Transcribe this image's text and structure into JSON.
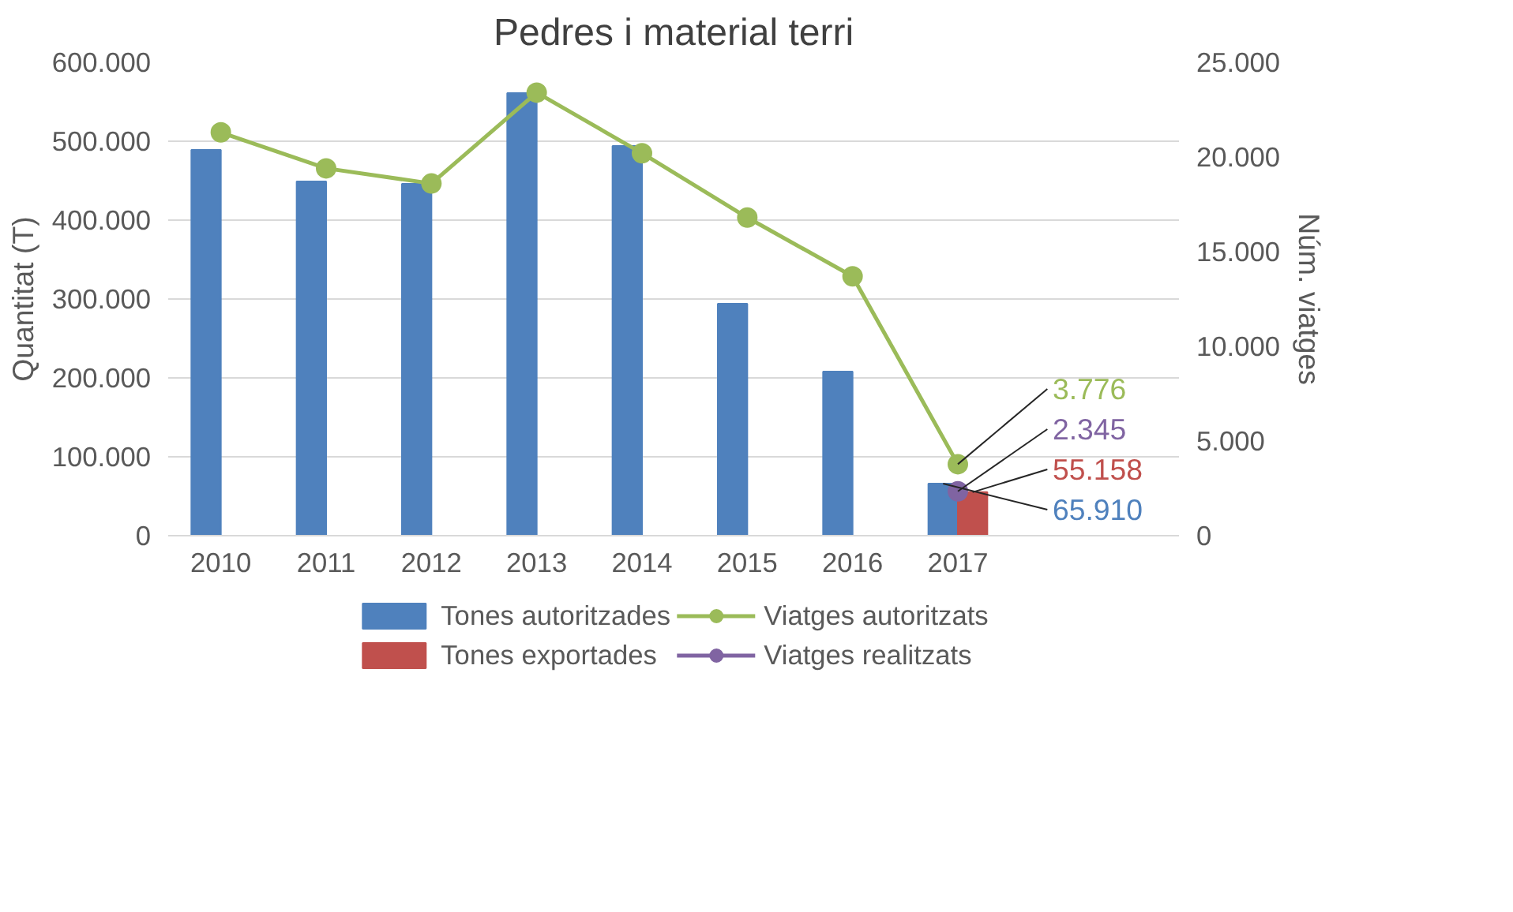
{
  "chart_data": {
    "type": "bar",
    "title": "Pedres i material terri",
    "ylabel": "Quantitat (T)",
    "y2label": "Núm. viatges",
    "categories": [
      "2010",
      "2011",
      "2012",
      "2013",
      "2014",
      "2015",
      "2016",
      "2017"
    ],
    "series": [
      {
        "name": "Tones autoritzades",
        "color": "#4f81bd",
        "values": [
          489000,
          449000,
          446000,
          561000,
          494000,
          294000,
          208000,
          65910
        ],
        "value_labels": [
          null,
          null,
          null,
          null,
          null,
          null,
          null,
          "65.910"
        ]
      },
      {
        "name": "Tones exportades",
        "color": "#c0504d",
        "values": [
          null,
          null,
          null,
          null,
          null,
          null,
          null,
          55158
        ],
        "value_labels": [
          null,
          null,
          null,
          null,
          null,
          null,
          null,
          "55.158"
        ]
      },
      {
        "name": "Viatges autoritzats",
        "type": "line",
        "axis": "y2",
        "color": "#9bbb59",
        "values": [
          21300,
          19400,
          18600,
          23400,
          20200,
          16800,
          13700,
          3776
        ],
        "value_labels": [
          null,
          null,
          null,
          null,
          null,
          null,
          null,
          "3.776"
        ]
      },
      {
        "name": "Viatges realitzats",
        "type": "line",
        "axis": "y2",
        "color": "#8064a2",
        "values": [
          null,
          null,
          null,
          null,
          null,
          null,
          null,
          2345
        ],
        "value_labels": [
          null,
          null,
          null,
          null,
          null,
          null,
          null,
          "2.345"
        ]
      }
    ],
    "ylim": [
      0,
      600000
    ],
    "yticks": [
      {
        "value": 0,
        "label": "0"
      },
      {
        "value": 100000,
        "label": "100.000"
      },
      {
        "value": 200000,
        "label": "200.000"
      },
      {
        "value": 300000,
        "label": "300.000"
      },
      {
        "value": 400000,
        "label": "400.000"
      },
      {
        "value": 500000,
        "label": "500.000"
      },
      {
        "value": 600000,
        "label": "600.000"
      }
    ],
    "y2lim": [
      0,
      25000
    ],
    "y2ticks": [
      {
        "value": 0,
        "label": "0"
      },
      {
        "value": 5000,
        "label": "5.000"
      },
      {
        "value": 10000,
        "label": "10.000"
      },
      {
        "value": 15000,
        "label": "15.000"
      },
      {
        "value": 20000,
        "label": "20.000"
      },
      {
        "value": 25000,
        "label": "25.000"
      }
    ],
    "grid": "y",
    "legend": "bottom",
    "marker": "circle",
    "line_style": "solid"
  }
}
